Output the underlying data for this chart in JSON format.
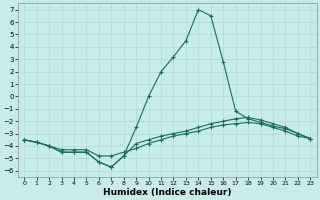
{
  "title": "",
  "xlabel": "Humidex (Indice chaleur)",
  "background_color": "#c8ece8",
  "grid_color": "#b0d8d4",
  "line_color": "#1a6b60",
  "xlim": [
    -0.5,
    23.5
  ],
  "ylim": [
    -6.5,
    7.5
  ],
  "xticks": [
    0,
    1,
    2,
    3,
    4,
    5,
    6,
    7,
    8,
    9,
    10,
    11,
    12,
    13,
    14,
    15,
    16,
    17,
    18,
    19,
    20,
    21,
    22,
    23
  ],
  "yticks": [
    -6,
    -5,
    -4,
    -3,
    -2,
    -1,
    0,
    1,
    2,
    3,
    4,
    5,
    6,
    7
  ],
  "line1_x": [
    0,
    1,
    2,
    3,
    4,
    5,
    6,
    7,
    8,
    9,
    10,
    11,
    12,
    13,
    14,
    15,
    16,
    17,
    18,
    19,
    20,
    21,
    22,
    23
  ],
  "line1_y": [
    -3.5,
    -3.7,
    -4.0,
    -4.5,
    -4.5,
    -4.5,
    -5.3,
    -5.7,
    -4.8,
    -2.5,
    0.0,
    2.0,
    3.2,
    4.5,
    7.0,
    6.5,
    2.8,
    -1.2,
    -1.8,
    -2.1,
    -2.4,
    -2.6,
    -3.0,
    -3.4
  ],
  "line2_x": [
    0,
    1,
    2,
    3,
    4,
    5,
    6,
    7,
    8,
    9,
    10,
    11,
    12,
    13,
    14,
    15,
    16,
    17,
    18,
    19,
    20,
    21,
    22,
    23
  ],
  "line2_y": [
    -3.5,
    -3.7,
    -4.0,
    -4.5,
    -4.5,
    -4.5,
    -5.3,
    -5.7,
    -4.8,
    -3.8,
    -3.5,
    -3.2,
    -3.0,
    -2.8,
    -2.5,
    -2.2,
    -2.0,
    -1.8,
    -1.7,
    -1.9,
    -2.2,
    -2.5,
    -3.0,
    -3.4
  ],
  "line3_x": [
    0,
    1,
    2,
    3,
    4,
    5,
    6,
    7,
    8,
    9,
    10,
    11,
    12,
    13,
    14,
    15,
    16,
    17,
    18,
    19,
    20,
    21,
    22,
    23
  ],
  "line3_y": [
    -3.5,
    -3.7,
    -4.0,
    -4.3,
    -4.3,
    -4.3,
    -4.8,
    -4.8,
    -4.5,
    -4.2,
    -3.8,
    -3.5,
    -3.2,
    -3.0,
    -2.8,
    -2.5,
    -2.3,
    -2.2,
    -2.1,
    -2.2,
    -2.5,
    -2.8,
    -3.2,
    -3.4
  ]
}
